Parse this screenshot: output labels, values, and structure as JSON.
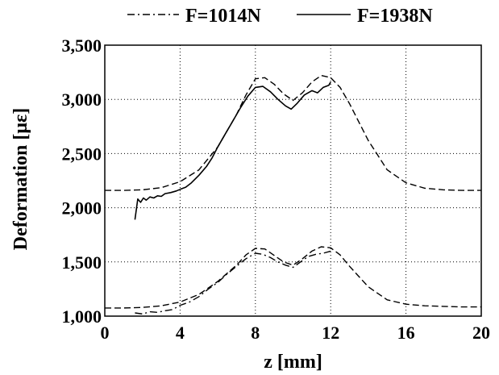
{
  "chart_data": {
    "type": "line",
    "title": "",
    "xlabel": "z [mm]",
    "ylabel": "Deformation [με]",
    "xlim": [
      0,
      20
    ],
    "ylim": [
      1000,
      3500
    ],
    "x_ticks": [
      0,
      4,
      8,
      12,
      16,
      20
    ],
    "x_tick_labels": [
      "0",
      "4",
      "8",
      "12",
      "16",
      "20"
    ],
    "y_ticks": [
      1000,
      1500,
      2000,
      2500,
      3000,
      3500
    ],
    "y_tick_labels": [
      "1,000",
      "1,500",
      "2,000",
      "2,500",
      "3,000",
      "3,500"
    ],
    "grid": true,
    "legend": {
      "placement": "top",
      "entries": [
        {
          "label": "F=1014N",
          "style": "dash-dot"
        },
        {
          "label": "F=1938N",
          "style": "solid"
        }
      ]
    },
    "series": [
      {
        "name": "",
        "style": "dashed",
        "x": [
          0,
          1,
          2,
          3,
          4,
          5,
          6,
          7,
          7.5,
          8,
          8.5,
          9,
          9.5,
          10,
          10.5,
          11,
          11.5,
          12,
          12.5,
          13,
          14,
          15,
          16,
          17,
          18,
          19,
          20
        ],
        "y": [
          2160,
          2160,
          2165,
          2185,
          2240,
          2350,
          2560,
          2860,
          3040,
          3190,
          3200,
          3140,
          3050,
          2990,
          3060,
          3160,
          3220,
          3200,
          3110,
          2960,
          2620,
          2350,
          2230,
          2180,
          2165,
          2160,
          2160
        ]
      },
      {
        "name": "",
        "style": "solid",
        "x": [
          1.6,
          1.75,
          1.9,
          2.05,
          2.2,
          2.4,
          2.6,
          2.8,
          3.0,
          3.2,
          3.5,
          3.8,
          4.0,
          4.3,
          4.6,
          5.0,
          5.4,
          5.7,
          6.0,
          6.4,
          6.8,
          7.2,
          7.6,
          8.0,
          8.4,
          8.8,
          9.2,
          9.6,
          9.9,
          10.2,
          10.6,
          11.0,
          11.3,
          11.6,
          11.9,
          12.0
        ],
        "y": [
          1890,
          2080,
          2050,
          2090,
          2070,
          2100,
          2090,
          2110,
          2105,
          2130,
          2140,
          2155,
          2170,
          2190,
          2230,
          2300,
          2380,
          2460,
          2560,
          2680,
          2800,
          2920,
          3030,
          3110,
          3120,
          3070,
          3000,
          2940,
          2910,
          2960,
          3040,
          3080,
          3060,
          3110,
          3130,
          3160
        ]
      },
      {
        "name": "",
        "style": "dashed",
        "x": [
          0,
          1,
          2,
          3,
          4,
          5,
          6,
          7,
          7.5,
          8,
          8.5,
          9,
          9.5,
          10,
          10.5,
          11,
          11.5,
          12,
          12.5,
          13,
          14,
          15,
          16,
          17,
          18,
          19,
          20
        ],
        "y": [
          1075,
          1075,
          1080,
          1095,
          1130,
          1200,
          1320,
          1470,
          1565,
          1625,
          1620,
          1560,
          1500,
          1470,
          1530,
          1600,
          1640,
          1630,
          1565,
          1460,
          1270,
          1150,
          1110,
          1095,
          1090,
          1085,
          1085
        ]
      },
      {
        "name": "",
        "style": "dash-dot",
        "x": [
          1.6,
          2.0,
          2.4,
          2.8,
          3.2,
          3.6,
          4.0,
          4.5,
          5.0,
          5.5,
          6.0,
          6.5,
          7.0,
          7.5,
          8.0,
          8.4,
          8.8,
          9.2,
          9.6,
          10.0,
          10.4,
          10.8,
          11.2,
          11.6,
          12.0
        ],
        "y": [
          1030,
          1020,
          1040,
          1035,
          1050,
          1060,
          1100,
          1130,
          1180,
          1250,
          1310,
          1390,
          1460,
          1530,
          1580,
          1570,
          1540,
          1500,
          1470,
          1450,
          1500,
          1550,
          1570,
          1580,
          1600
        ]
      }
    ]
  }
}
